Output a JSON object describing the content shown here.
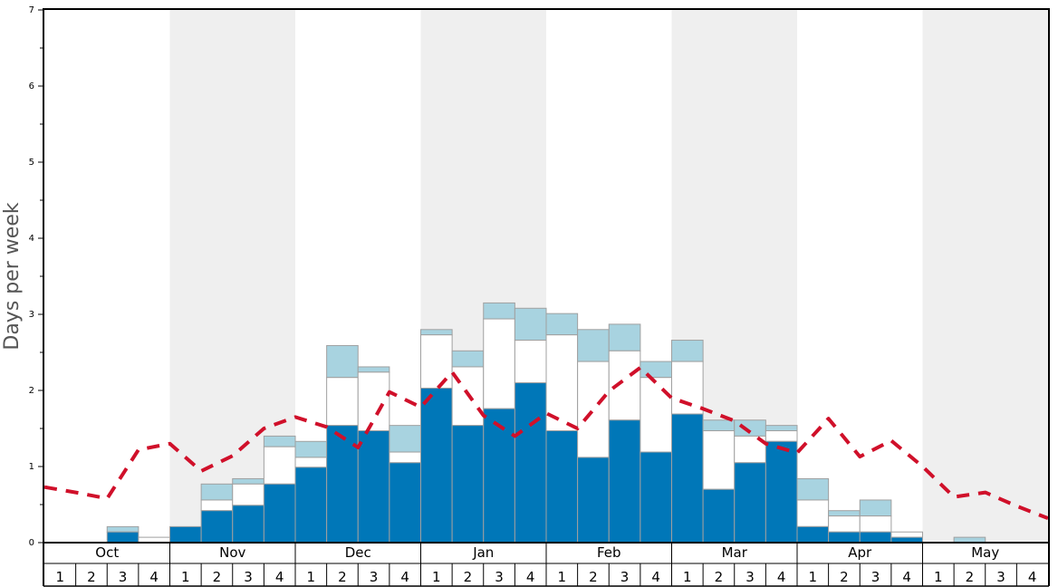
{
  "chart_data": {
    "type": "bar",
    "ylabel": "Days per week",
    "ylim": [
      0,
      7
    ],
    "yticks": [
      "0",
      "1",
      "2",
      "3",
      "4",
      "5",
      "6",
      "7"
    ],
    "months": [
      "Oct",
      "Nov",
      "Dec",
      "Jan",
      "Feb",
      "Mar",
      "Apr",
      "May"
    ],
    "weeks": [
      "1",
      "2",
      "3",
      "4"
    ],
    "colors": {
      "bottom": "#0077b8",
      "middle": "#ffffff",
      "top": "#a8d3e0",
      "line": "#d0102a",
      "band": "#efefef"
    },
    "series": [
      {
        "values": [
          0,
          0,
          0.14,
          0,
          0.21,
          0.42,
          0.49,
          0.77,
          0.99,
          1.54,
          1.47,
          1.05,
          2.03,
          1.54,
          1.76,
          2.1,
          1.47,
          1.12,
          1.61,
          1.19,
          1.69,
          0.7,
          1.05,
          1.33,
          0.21,
          0.14,
          0.14,
          0.07,
          0,
          0,
          0,
          0
        ]
      },
      {
        "values": [
          0,
          0,
          0.14,
          0.07,
          0.21,
          0.56,
          0.77,
          1.26,
          1.12,
          2.17,
          2.24,
          1.19,
          2.73,
          2.31,
          2.94,
          2.66,
          2.73,
          2.38,
          2.52,
          2.17,
          2.38,
          1.47,
          1.4,
          1.47,
          0.56,
          0.35,
          0.35,
          0.14,
          0,
          0,
          0,
          0
        ]
      },
      {
        "values": [
          0,
          0,
          0.21,
          0.07,
          0.21,
          0.77,
          0.84,
          1.4,
          1.33,
          2.59,
          2.31,
          1.54,
          2.8,
          2.52,
          3.15,
          3.08,
          3.01,
          2.8,
          2.87,
          2.38,
          2.66,
          1.61,
          1.61,
          1.54,
          0.84,
          0.42,
          0.56,
          0.14,
          0,
          0.07,
          0,
          0
        ]
      },
      {
        "values": [
          0.73,
          0.66,
          0.58,
          1.22,
          1.3,
          0.94,
          1.14,
          1.5,
          1.65,
          1.52,
          1.25,
          1.98,
          1.78,
          2.24,
          1.67,
          1.4,
          1.7,
          1.5,
          1.99,
          2.3,
          1.9,
          1.76,
          1.6,
          1.3,
          1.18,
          1.63,
          1.13,
          1.34,
          1.0,
          0.6,
          0.66,
          0.48,
          0.32
        ]
      }
    ]
  }
}
